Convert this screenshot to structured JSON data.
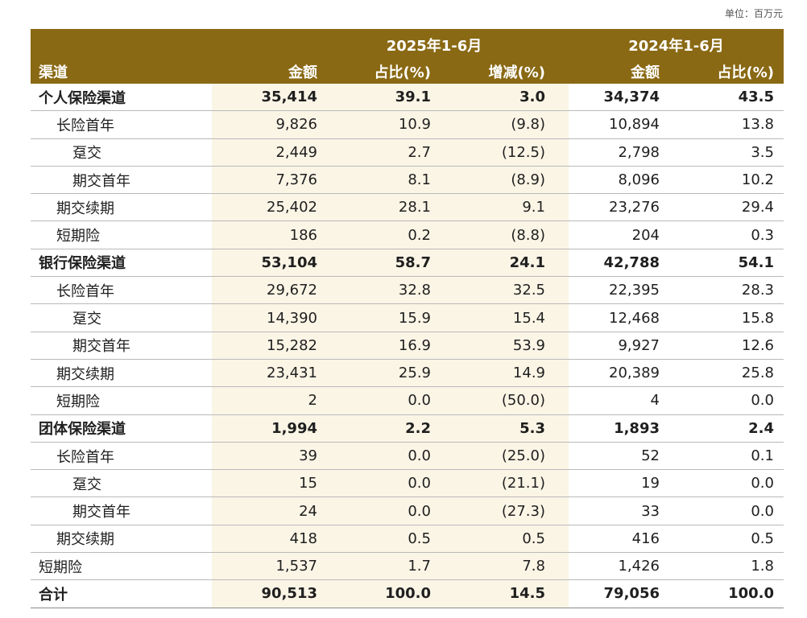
{
  "unit_label": "单位：百万元",
  "header": {
    "period_current": "2025年1-6月",
    "period_prior": "2024年1-6月",
    "col_channel": "渠道",
    "col_amount": "金额",
    "col_share": "占比(%)",
    "col_change": "增减(%)",
    "col_amount_prior": "金额",
    "col_share_prior": "占比(%)"
  },
  "rows": [
    {
      "name": "个人保险渠道",
      "level": 0,
      "bold": true,
      "v": [
        "35,414",
        "39.1",
        "3.0",
        "34,374",
        "43.5"
      ]
    },
    {
      "name": "长险首年",
      "level": 1,
      "bold": false,
      "v": [
        "9,826",
        "10.9",
        "(9.8)",
        "10,894",
        "13.8"
      ]
    },
    {
      "name": "趸交",
      "level": 2,
      "bold": false,
      "v": [
        "2,449",
        "2.7",
        "(12.5)",
        "2,798",
        "3.5"
      ]
    },
    {
      "name": "期交首年",
      "level": 2,
      "bold": false,
      "v": [
        "7,376",
        "8.1",
        "(8.9)",
        "8,096",
        "10.2"
      ]
    },
    {
      "name": "期交续期",
      "level": 1,
      "bold": false,
      "v": [
        "25,402",
        "28.1",
        "9.1",
        "23,276",
        "29.4"
      ]
    },
    {
      "name": "短期险",
      "level": 1,
      "bold": false,
      "v": [
        "186",
        "0.2",
        "(8.8)",
        "204",
        "0.3"
      ]
    },
    {
      "name": "银行保险渠道",
      "level": 0,
      "bold": true,
      "v": [
        "53,104",
        "58.7",
        "24.1",
        "42,788",
        "54.1"
      ]
    },
    {
      "name": "长险首年",
      "level": 1,
      "bold": false,
      "v": [
        "29,672",
        "32.8",
        "32.5",
        "22,395",
        "28.3"
      ]
    },
    {
      "name": "趸交",
      "level": 2,
      "bold": false,
      "v": [
        "14,390",
        "15.9",
        "15.4",
        "12,468",
        "15.8"
      ]
    },
    {
      "name": "期交首年",
      "level": 2,
      "bold": false,
      "v": [
        "15,282",
        "16.9",
        "53.9",
        "9,927",
        "12.6"
      ]
    },
    {
      "name": "期交续期",
      "level": 1,
      "bold": false,
      "v": [
        "23,431",
        "25.9",
        "14.9",
        "20,389",
        "25.8"
      ]
    },
    {
      "name": "短期险",
      "level": 1,
      "bold": false,
      "v": [
        "2",
        "0.0",
        "(50.0)",
        "4",
        "0.0"
      ]
    },
    {
      "name": "团体保险渠道",
      "level": 0,
      "bold": true,
      "v": [
        "1,994",
        "2.2",
        "5.3",
        "1,893",
        "2.4"
      ]
    },
    {
      "name": "长险首年",
      "level": 1,
      "bold": false,
      "v": [
        "39",
        "0.0",
        "(25.0)",
        "52",
        "0.1"
      ]
    },
    {
      "name": "趸交",
      "level": 2,
      "bold": false,
      "v": [
        "15",
        "0.0",
        "(21.1)",
        "19",
        "0.0"
      ]
    },
    {
      "name": "期交首年",
      "level": 2,
      "bold": false,
      "v": [
        "24",
        "0.0",
        "(27.3)",
        "33",
        "0.0"
      ]
    },
    {
      "name": "期交续期",
      "level": 1,
      "bold": false,
      "v": [
        "418",
        "0.5",
        "0.5",
        "416",
        "0.5"
      ]
    },
    {
      "name": "短期险",
      "level": 0,
      "bold": false,
      "v": [
        "1,537",
        "1.7",
        "7.8",
        "1,426",
        "1.8"
      ]
    },
    {
      "name": "合计",
      "level": 0,
      "bold": true,
      "v": [
        "90,513",
        "100.0",
        "14.5",
        "79,056",
        "100.0"
      ]
    }
  ]
}
